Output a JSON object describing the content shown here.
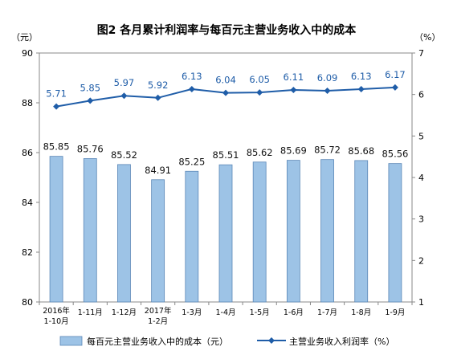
{
  "chart_data": {
    "type": "bar+line",
    "title": "图2  各月累计利润率与每百元主营业务收入中的成本",
    "left_unit": "（元）",
    "right_unit": "（%）",
    "categories": [
      [
        "2016年",
        "1-10月"
      ],
      [
        "1-11月"
      ],
      [
        "1-12月"
      ],
      [
        "2017年",
        "1-2月"
      ],
      [
        "1-3月"
      ],
      [
        "1-4月"
      ],
      [
        "1-5月"
      ],
      [
        "1-6月"
      ],
      [
        "1-7月"
      ],
      [
        "1-8月"
      ],
      [
        "1-9月"
      ]
    ],
    "series": [
      {
        "name": "每百元主营业务收入中的成本（元）",
        "type": "bar",
        "axis": "left",
        "color": "#9dc3e6",
        "values": [
          85.85,
          85.76,
          85.52,
          84.91,
          85.25,
          85.51,
          85.62,
          85.69,
          85.72,
          85.68,
          85.56
        ],
        "labels": [
          "85.85",
          "85.76",
          "85.52",
          "84.91",
          "85.25",
          "85.51",
          "85.62",
          "85.69",
          "85.72",
          "85.68",
          "85.56"
        ]
      },
      {
        "name": "主营业务收入利润率（%）",
        "type": "line",
        "axis": "right",
        "color": "#1f5da8",
        "values": [
          5.71,
          5.85,
          5.97,
          5.92,
          6.13,
          6.04,
          6.05,
          6.11,
          6.09,
          6.13,
          6.17
        ],
        "labels": [
          "5.71",
          "5.85",
          "5.97",
          "5.92",
          "6.13",
          "6.04",
          "6.05",
          "6.11",
          "6.09",
          "6.13",
          "6.17"
        ]
      }
    ],
    "y_left": {
      "min": 80,
      "max": 90,
      "step": 2
    },
    "y_right": {
      "min": 1,
      "max": 7,
      "step": 1
    },
    "grid": false,
    "legend_position": "bottom"
  }
}
